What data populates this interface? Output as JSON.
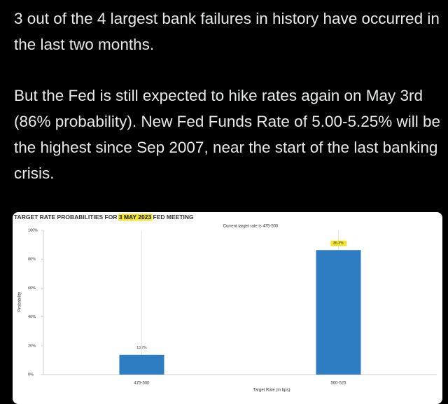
{
  "tweet": {
    "paragraphs": [
      "3 out of the 4 largest bank failures in history have occurred in the last two months.",
      "But the Fed is still expected to hike rates again on May 3rd (86% probability). New Fed Funds Rate of 5.00-5.25% will be the highest since Sep 2007, near the start of the last banking crisis."
    ]
  },
  "chart_data": {
    "type": "bar",
    "title_parts": [
      "TARGET RATE PROBABILITIES FOR ",
      "3 MAY 2023",
      " FED MEETING"
    ],
    "subtitle": "Current target rate is 475-500",
    "x_label": "Target Rate (in bps)",
    "y_label": "Probability",
    "categories": [
      "475-500",
      "500-525"
    ],
    "values": [
      13.7,
      86.3
    ],
    "value_labels": [
      "13.7%",
      "86.3%"
    ],
    "color": "#2e7dc2",
    "ylim": [
      0,
      100
    ],
    "yticks": [
      {
        "value": 0,
        "label": "0%"
      },
      {
        "value": 20,
        "label": "20%"
      },
      {
        "value": 40,
        "label": "40%"
      },
      {
        "value": 60,
        "label": "60%"
      },
      {
        "value": 80,
        "label": "80%"
      },
      {
        "value": 100,
        "label": "100%"
      }
    ],
    "grid": false
  }
}
